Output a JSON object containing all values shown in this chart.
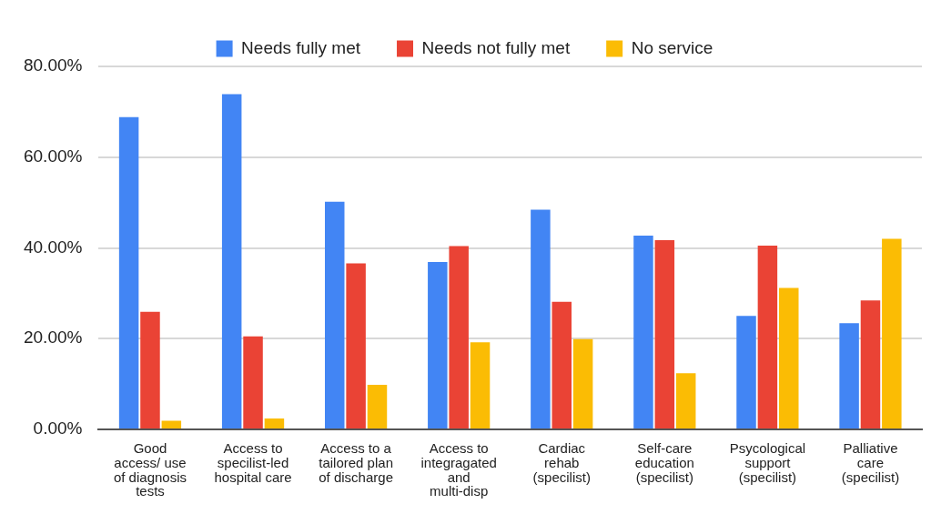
{
  "chart_data": {
    "type": "bar",
    "categories": [
      "Good\naccess/ use\nof diagnosis\ntests",
      "Access to\nspecilist-led\nhospital care",
      "Access to a\ntailored plan\nof discharge",
      "Access to\nintegragated\nand\nmulti-disp",
      "Cardiac\nrehab\n(specilist)",
      "Self-care\neducation\n(specilist)",
      "Psycological\nsupport\n(specilist)",
      "Palliative\ncare\n(specilist)"
    ],
    "series": [
      {
        "name": "Needs fully met",
        "color": "#4285f4",
        "values": [
          68.8,
          73.9,
          50.2,
          36.9,
          48.4,
          42.7,
          25.0,
          23.4
        ]
      },
      {
        "name": "Needs not fully met",
        "color": "#ea4335",
        "values": [
          25.9,
          20.5,
          36.6,
          40.4,
          28.1,
          41.7,
          40.5,
          28.4
        ]
      },
      {
        "name": "No service",
        "color": "#fbbc04",
        "values": [
          1.9,
          2.4,
          9.8,
          19.2,
          19.9,
          12.4,
          31.2,
          42.0
        ]
      }
    ],
    "ylim": [
      0,
      80
    ],
    "yticks": [
      {
        "value": 0,
        "label": "0.00%"
      },
      {
        "value": 20,
        "label": "20.00%"
      },
      {
        "value": 40,
        "label": "40.00%"
      },
      {
        "value": 60,
        "label": "60.00%"
      },
      {
        "value": 80,
        "label": "80.00%"
      }
    ],
    "grid": "y",
    "legend": "top"
  }
}
